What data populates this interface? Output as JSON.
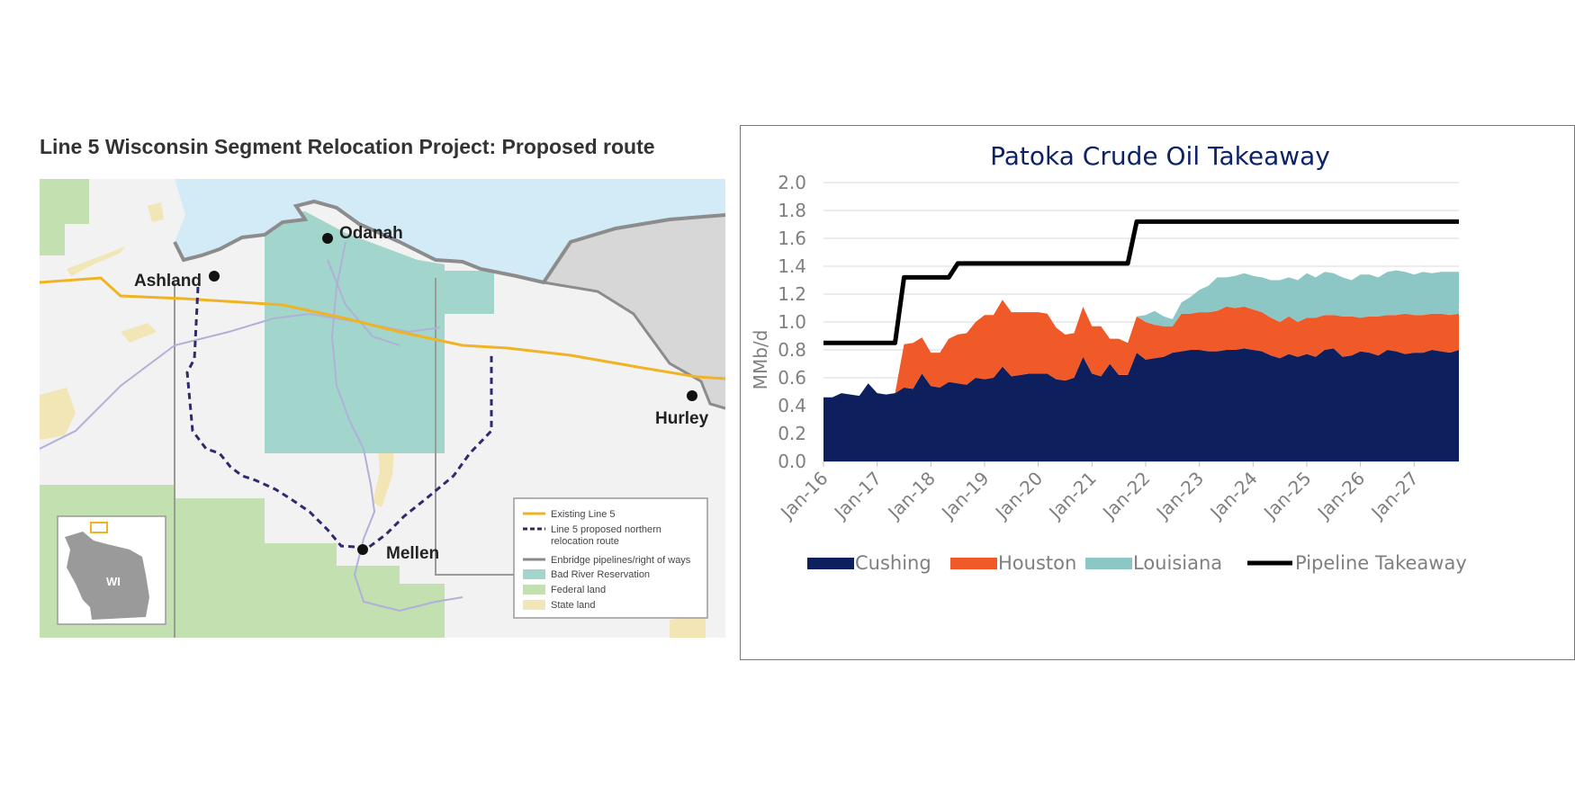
{
  "map": {
    "title": "Line 5 Wisconsin Segment Relocation Project: Proposed route",
    "places": {
      "odanah": "Odanah",
      "ashland": "Ashland",
      "hurley": "Hurley",
      "mellen": "Mellen"
    },
    "inset_label": "WI",
    "legend": [
      {
        "label": "Existing Line 5",
        "color": "#f0b323"
      },
      {
        "label": "Line 5 proposed northern",
        "label2": "relocation route",
        "color": "#2e2a6e"
      },
      {
        "label": "Enbridge pipelines/right of ways",
        "color": "#8a8a8a"
      },
      {
        "label": "Bad River Reservation",
        "color": "#a2d6cc"
      },
      {
        "label": "Federal land",
        "color": "#c3e0b0"
      },
      {
        "label": "State land",
        "color": "#f2e6b6"
      }
    ]
  },
  "chart_data": {
    "type": "area",
    "title": "Patoka Crude Oil Takeaway",
    "ylabel": "MMb/d",
    "xlabel": "",
    "ylim": [
      0,
      2.0
    ],
    "yticks": [
      "0.0",
      "0.2",
      "0.4",
      "0.6",
      "0.8",
      "1.0",
      "1.2",
      "1.4",
      "1.6",
      "1.8",
      "2.0"
    ],
    "x_tick_labels": [
      "Jan-16",
      "Jan-17",
      "Jan-18",
      "Jan-19",
      "Jan-20",
      "Jan-21",
      "Jan-22",
      "Jan-23",
      "Jan-24",
      "Jan-25",
      "Jan-26",
      "Jan-27"
    ],
    "x_range": [
      "Jan-16",
      "Dec-27"
    ],
    "grid": "horizontal",
    "legend_position": "bottom",
    "months_per_point": 2,
    "series": [
      {
        "name": "Cushing",
        "kind": "stacked-area",
        "color": "#0d1f5c",
        "values": [
          0.46,
          0.46,
          0.49,
          0.48,
          0.47,
          0.56,
          0.49,
          0.48,
          0.49,
          0.53,
          0.52,
          0.63,
          0.54,
          0.53,
          0.57,
          0.56,
          0.55,
          0.6,
          0.59,
          0.6,
          0.68,
          0.61,
          0.62,
          0.63,
          0.63,
          0.63,
          0.59,
          0.58,
          0.6,
          0.75,
          0.63,
          0.61,
          0.7,
          0.62,
          0.62,
          0.78,
          0.73,
          0.74,
          0.75,
          0.78,
          0.79,
          0.8,
          0.8,
          0.79,
          0.79,
          0.8,
          0.8,
          0.81,
          0.8,
          0.79,
          0.76,
          0.74,
          0.77,
          0.75,
          0.77,
          0.75,
          0.8,
          0.81,
          0.75,
          0.76,
          0.79,
          0.78,
          0.76,
          0.8,
          0.79,
          0.77,
          0.78,
          0.78,
          0.8,
          0.79,
          0.78,
          0.8
        ]
      },
      {
        "name": "Houston",
        "kind": "stacked-area",
        "color": "#f05a28",
        "values": [
          0,
          0,
          0,
          0,
          0,
          0,
          0,
          0,
          0,
          0.31,
          0.33,
          0.26,
          0.24,
          0.25,
          0.31,
          0.35,
          0.37,
          0.4,
          0.46,
          0.45,
          0.48,
          0.46,
          0.45,
          0.44,
          0.44,
          0.43,
          0.37,
          0.33,
          0.32,
          0.36,
          0.34,
          0.36,
          0.18,
          0.26,
          0.23,
          0.26,
          0.27,
          0.24,
          0.22,
          0.19,
          0.27,
          0.26,
          0.27,
          0.28,
          0.29,
          0.31,
          0.3,
          0.3,
          0.29,
          0.28,
          0.27,
          0.26,
          0.27,
          0.25,
          0.26,
          0.28,
          0.25,
          0.24,
          0.29,
          0.28,
          0.24,
          0.26,
          0.28,
          0.25,
          0.26,
          0.29,
          0.27,
          0.27,
          0.26,
          0.27,
          0.27,
          0.26
        ]
      },
      {
        "name": "Louisiana",
        "kind": "stacked-area",
        "color": "#8cc7c6",
        "values": [
          0,
          0,
          0,
          0,
          0,
          0,
          0,
          0,
          0,
          0,
          0,
          0,
          0,
          0,
          0,
          0,
          0,
          0,
          0,
          0,
          0,
          0,
          0,
          0,
          0,
          0,
          0,
          0,
          0,
          0,
          0,
          0,
          0,
          0,
          0,
          0,
          0.05,
          0.1,
          0.07,
          0.05,
          0.08,
          0.12,
          0.16,
          0.19,
          0.24,
          0.21,
          0.23,
          0.24,
          0.24,
          0.25,
          0.27,
          0.3,
          0.28,
          0.3,
          0.32,
          0.29,
          0.31,
          0.3,
          0.28,
          0.26,
          0.31,
          0.3,
          0.28,
          0.31,
          0.32,
          0.3,
          0.29,
          0.31,
          0.29,
          0.3,
          0.31,
          0.3
        ]
      },
      {
        "name": "Pipeline Takeaway",
        "kind": "line",
        "color": "#000000",
        "values": [
          0.85,
          0.85,
          0.85,
          0.85,
          0.85,
          0.85,
          0.85,
          0.85,
          0.85,
          1.32,
          1.32,
          1.32,
          1.32,
          1.32,
          1.32,
          1.42,
          1.42,
          1.42,
          1.42,
          1.42,
          1.42,
          1.42,
          1.42,
          1.42,
          1.42,
          1.42,
          1.42,
          1.42,
          1.42,
          1.42,
          1.42,
          1.42,
          1.42,
          1.42,
          1.42,
          1.72,
          1.72,
          1.72,
          1.72,
          1.72,
          1.72,
          1.72,
          1.72,
          1.72,
          1.72,
          1.72,
          1.72,
          1.72,
          1.72,
          1.72,
          1.72,
          1.72,
          1.72,
          1.72,
          1.72,
          1.72,
          1.72,
          1.72,
          1.72,
          1.72,
          1.72,
          1.72,
          1.72,
          1.72,
          1.72,
          1.72,
          1.72,
          1.72,
          1.72,
          1.72,
          1.72,
          1.72
        ]
      }
    ]
  }
}
